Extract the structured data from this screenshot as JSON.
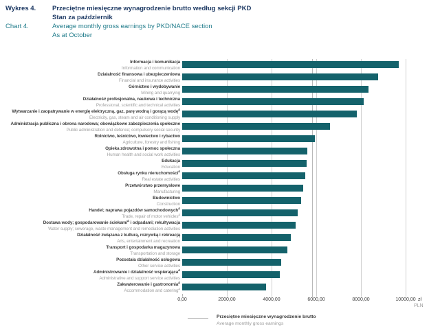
{
  "header": {
    "label_pl": "Wykres 4.",
    "label_en": "Chart 4.",
    "title_pl_line1": "Przeciętne miesięczne wynagrodzenie brutto według sekcji PKD",
    "title_pl_line2": "Stan za październik",
    "title_en_line1": "Average monthly gross earnings by PKD/NACE section",
    "title_en_line2": "As at October"
  },
  "chart_data": {
    "type": "bar",
    "orientation": "horizontal",
    "title_pl": "Przeciętne miesięczne wynagrodzenie brutto według sekcji PKD. Stan za październik",
    "title_en": "Average monthly gross earnings by PKD/NACE section. As at October",
    "unit": "zł",
    "unit_secondary": "PLN",
    "xlim": [
      0,
      10000
    ],
    "x_ticks": [
      "0,00",
      "2000,00",
      "4000,00",
      "6000,00",
      "8000,00",
      "10000,00"
    ],
    "x_tick_values": [
      0,
      2000,
      4000,
      6000,
      8000,
      10000
    ],
    "grid": true,
    "bar_color": "#14626b",
    "reference_line": {
      "value": 5800,
      "label_pl": "Przeciętne miesięczne wynagrodzenie brutto",
      "label_en": "Average monthly gross earnings"
    },
    "categories": [
      {
        "pl": "Informacja i komunikacja",
        "en": "Information and communication",
        "value": 9700
      },
      {
        "pl": "Działalność finansowa i ubezpieczeniowa",
        "en": "Financial and insurance activities",
        "value": 8780
      },
      {
        "pl": "Górnictwo i wydobywanie",
        "en": "Mining and quarrying",
        "value": 8340
      },
      {
        "pl": "Działalność profesjonalna, naukowa i techniczna",
        "en": "Professional, scientific and technical activities",
        "value": 8110
      },
      {
        "pl": "Wytwarzanie i zaopatrywanie w energię elektryczną, gaz, parę wodną i gorącą wodęΔ",
        "en": "Electricity, gas, steam and air conditioning supply",
        "value": 7830
      },
      {
        "pl": "Administracja publiczna i obrona narodowa; obowiązkowe zabezpieczenia społeczne",
        "en": "Public administration and defence; compulsory social security",
        "value": 6600
      },
      {
        "pl": "Rolnictwo, leśnictwo, łowiectwo i rybactwo",
        "en": "Agriculture, forestry and fishing",
        "value": 5930
      },
      {
        "pl": "Opieka zdrowotna i pomoc społeczna",
        "en": "Human health and social work activities",
        "value": 5600
      },
      {
        "pl": "Edukacja",
        "en": "Education",
        "value": 5570
      },
      {
        "pl": "Obsługa rynku nieruchomościΔ",
        "en": "Real estate activities",
        "value": 5520
      },
      {
        "pl": "Przetwórstwo przemysłowe",
        "en": "Manufacturing",
        "value": 5420
      },
      {
        "pl": "Budownictwo",
        "en": "Construction",
        "value": 5330
      },
      {
        "pl": "Handel; naprawa pojazdów samochodowychΔ",
        "en": "Trade, repair of motor vehiclesΔ",
        "value": 5180
      },
      {
        "pl": "Dostawa wody; gospodarowanie ściekamiΔ i odpadami; rekultywacja",
        "en": "Water supply; sewerage, waste management and remediation activities",
        "value": 5090
      },
      {
        "pl": "Działalność związana z kulturą, rozrywką i rekreacją",
        "en": "Arts, entertainment and recreation",
        "value": 4850
      },
      {
        "pl": "Transport i gospodarka magazynowa",
        "en": "Transportation and storage",
        "value": 4720
      },
      {
        "pl": "Pozostała działalność usługowa",
        "en": "Other service activities",
        "value": 4440
      },
      {
        "pl": "Administrowanie i działalność wspierającaΔ",
        "en": "Administrative and support service activities",
        "value": 4360
      },
      {
        "pl": "Zakwaterowanie i gastronomiaΔ",
        "en": "Accommodation and cateringΔ",
        "value": 3750
      }
    ]
  },
  "legend": {
    "label_pl": "Przeciętne miesięczne wynagrodzenie brutto",
    "label_en": "Average monthly gross earnings"
  },
  "colors": {
    "bar": "#14626b",
    "title_navy": "#1e3a64",
    "title_teal": "#1f7b8a",
    "label_dark": "#3b3b3b",
    "label_gray": "#a0a0a0",
    "gridline": "#cfcfcf",
    "reference_line": "#b9b9b9"
  }
}
